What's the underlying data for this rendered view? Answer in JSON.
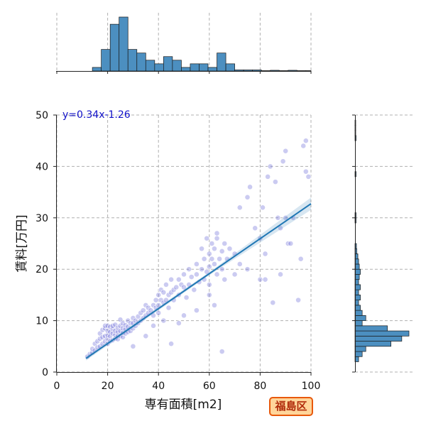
{
  "chart_data": {
    "type": "scatter",
    "xlabel": "専有面積[m2]",
    "ylabel": "賃料[万円]",
    "xlim": [
      0,
      100
    ],
    "ylim": [
      0,
      50
    ],
    "x_ticks": [
      "0",
      "20",
      "40",
      "60",
      "80",
      "100"
    ],
    "y_ticks": [
      "0",
      "10",
      "20",
      "30",
      "40",
      "50"
    ],
    "grid": true,
    "regression": {
      "label": "y=0.34x-1.26",
      "slope": 0.34,
      "intercept": -1.26,
      "x_range": [
        11.5,
        100
      ]
    },
    "points": [
      [
        12,
        3
      ],
      [
        13,
        3.5
      ],
      [
        14,
        3.8
      ],
      [
        14,
        4.5
      ],
      [
        15,
        4.2
      ],
      [
        15,
        5.5
      ],
      [
        16,
        4.8
      ],
      [
        16,
        6
      ],
      [
        17,
        5
      ],
      [
        17,
        6.5
      ],
      [
        17,
        7.5
      ],
      [
        18,
        5.5
      ],
      [
        18,
        6.8
      ],
      [
        18,
        8.2
      ],
      [
        19,
        6
      ],
      [
        19,
        7
      ],
      [
        19,
        8.5
      ],
      [
        19,
        9
      ],
      [
        20,
        5.5
      ],
      [
        20,
        6.5
      ],
      [
        20,
        7.2
      ],
      [
        20,
        8
      ],
      [
        20,
        9
      ],
      [
        21,
        6
      ],
      [
        21,
        7
      ],
      [
        21,
        7.8
      ],
      [
        21,
        8.8
      ],
      [
        22,
        6.2
      ],
      [
        22,
        7.5
      ],
      [
        22,
        8.4
      ],
      [
        22,
        9
      ],
      [
        23,
        6.5
      ],
      [
        23,
        7.2
      ],
      [
        23,
        8
      ],
      [
        23,
        9.2
      ],
      [
        24,
        7
      ],
      [
        24,
        7.8
      ],
      [
        24,
        8.6
      ],
      [
        24,
        6.4
      ],
      [
        25,
        7
      ],
      [
        25,
        8
      ],
      [
        25,
        9
      ],
      [
        25,
        10.2
      ],
      [
        26,
        6.8
      ],
      [
        26,
        7.6
      ],
      [
        26,
        8.5
      ],
      [
        26,
        9.5
      ],
      [
        27,
        7.5
      ],
      [
        27,
        8.3
      ],
      [
        27,
        9.1
      ],
      [
        28,
        7.8
      ],
      [
        28,
        8.8
      ],
      [
        28,
        10
      ],
      [
        29,
        8
      ],
      [
        29,
        9.5
      ],
      [
        30,
        8.5
      ],
      [
        30,
        9.5
      ],
      [
        30,
        10.5
      ],
      [
        31,
        9
      ],
      [
        31,
        10
      ],
      [
        32,
        9.5
      ],
      [
        32,
        10.8
      ],
      [
        33,
        10
      ],
      [
        33,
        11.5
      ],
      [
        34,
        10.5
      ],
      [
        34,
        12
      ],
      [
        35,
        11
      ],
      [
        35,
        13
      ],
      [
        36,
        11.5
      ],
      [
        36,
        12.5
      ],
      [
        37,
        12
      ],
      [
        38,
        13
      ],
      [
        38,
        11
      ],
      [
        39,
        12.5
      ],
      [
        39,
        14
      ],
      [
        40,
        13
      ],
      [
        40,
        15
      ],
      [
        40,
        11.5
      ],
      [
        41,
        14
      ],
      [
        41,
        16
      ],
      [
        42,
        13.5
      ],
      [
        42,
        15.5
      ],
      [
        43,
        14
      ],
      [
        43,
        17
      ],
      [
        44,
        15
      ],
      [
        44,
        12.5
      ],
      [
        45,
        15.5
      ],
      [
        45,
        18
      ],
      [
        46,
        16
      ],
      [
        46,
        14
      ],
      [
        47,
        16.5
      ],
      [
        48,
        15
      ],
      [
        48,
        18
      ],
      [
        49,
        17
      ],
      [
        50,
        16.5
      ],
      [
        50,
        19
      ],
      [
        51,
        14.5
      ],
      [
        52,
        17
      ],
      [
        52,
        20
      ],
      [
        53,
        18.5
      ],
      [
        54,
        16
      ],
      [
        55,
        19
      ],
      [
        55,
        21
      ],
      [
        56,
        17.5
      ],
      [
        57,
        20
      ],
      [
        58,
        18
      ],
      [
        58,
        22
      ],
      [
        59,
        19.5
      ],
      [
        60,
        20.5
      ],
      [
        60,
        23
      ],
      [
        60,
        17
      ],
      [
        61,
        22
      ],
      [
        61,
        25
      ],
      [
        62,
        21
      ],
      [
        62,
        24
      ],
      [
        63,
        19
      ],
      [
        63,
        26
      ],
      [
        64,
        22
      ],
      [
        65,
        23.5
      ],
      [
        65,
        20
      ],
      [
        66,
        18
      ],
      [
        66,
        25
      ],
      [
        67,
        22
      ],
      [
        68,
        24
      ],
      [
        70,
        23
      ],
      [
        72,
        32
      ],
      [
        75,
        34
      ],
      [
        76,
        36
      ],
      [
        78,
        28
      ],
      [
        80,
        26
      ],
      [
        81,
        32
      ],
      [
        82,
        23
      ],
      [
        83,
        38
      ],
      [
        84,
        40
      ],
      [
        85,
        13.5
      ],
      [
        86,
        37
      ],
      [
        87,
        30
      ],
      [
        88,
        28
      ],
      [
        89,
        41
      ],
      [
        90,
        43
      ],
      [
        90,
        30
      ],
      [
        91,
        25
      ],
      [
        92,
        25
      ],
      [
        93,
        30
      ],
      [
        95,
        14
      ],
      [
        96,
        22
      ],
      [
        97,
        44
      ],
      [
        98,
        45
      ],
      [
        98,
        39
      ],
      [
        99,
        38
      ],
      [
        80,
        18
      ],
      [
        82,
        18
      ],
      [
        88,
        19
      ],
      [
        65,
        4
      ],
      [
        45,
        5.5
      ],
      [
        30,
        5
      ],
      [
        35,
        7
      ],
      [
        38,
        9
      ],
      [
        42,
        10
      ],
      [
        50,
        11
      ],
      [
        55,
        12
      ],
      [
        48,
        9.5
      ],
      [
        60,
        15
      ],
      [
        62,
        13
      ],
      [
        70,
        19
      ],
      [
        72,
        21
      ],
      [
        75,
        20
      ],
      [
        57,
        24
      ],
      [
        59,
        26
      ],
      [
        63,
        27
      ]
    ],
    "x_histogram": {
      "bin_edges": [
        0,
        3.5,
        7,
        10.5,
        14,
        17.5,
        21,
        24.5,
        28,
        31.5,
        35,
        38.5,
        42,
        45.5,
        49,
        52.5,
        56,
        59.5,
        63,
        66.5,
        70,
        73.5,
        77,
        80.5,
        84,
        87.5,
        91,
        94.5,
        98,
        101.5
      ],
      "counts": [
        0,
        0,
        0,
        0,
        1,
        6,
        13,
        15,
        6,
        5,
        3,
        2,
        4,
        3,
        1,
        2,
        2,
        1,
        5,
        2,
        0.3,
        0.3,
        0.3,
        0.1,
        0.2,
        0.1,
        0.2,
        0.1,
        0.1
      ]
    },
    "y_histogram": {
      "bin_edges": [
        0,
        1,
        2,
        3,
        4,
        5,
        6,
        7,
        8,
        9,
        10,
        11,
        12,
        13,
        14,
        15,
        16,
        17,
        18,
        19,
        20,
        21,
        22,
        23,
        24,
        25,
        26,
        27,
        28,
        29,
        30,
        31,
        32,
        33,
        34,
        35,
        36,
        37,
        38,
        39,
        40,
        41,
        42,
        43,
        44,
        45,
        46,
        47,
        48,
        49,
        50
      ],
      "counts": [
        0,
        0,
        1,
        2,
        3,
        10,
        13,
        15,
        9,
        2,
        3,
        2,
        1.5,
        1,
        1.5,
        1,
        1.5,
        1,
        1.2,
        1.5,
        1.2,
        1,
        0.8,
        0.5,
        0.4,
        0,
        0,
        0,
        0,
        0.3,
        0.3,
        0,
        0,
        0,
        0,
        0,
        0,
        0,
        0.3,
        0,
        0,
        0,
        0,
        0,
        0,
        0.3,
        0.2,
        0.2,
        0.2,
        0
      ]
    }
  },
  "badge": {
    "label": "福島区"
  }
}
